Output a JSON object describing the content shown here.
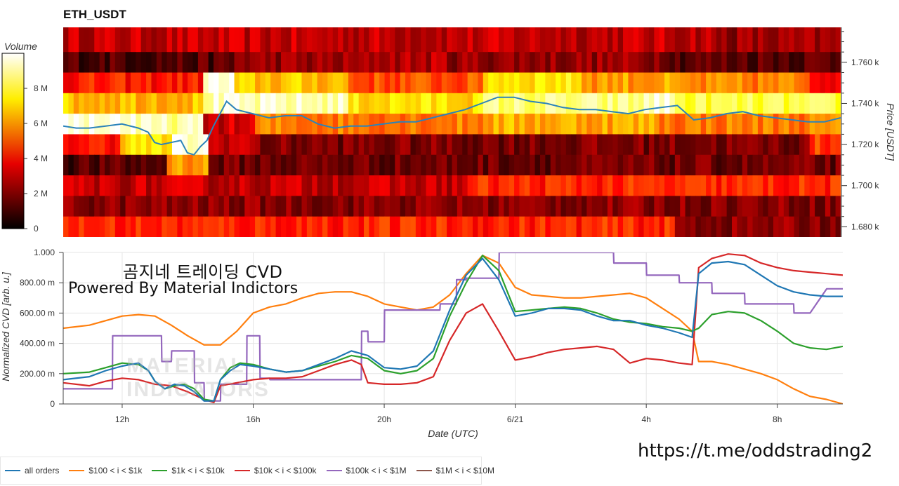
{
  "page": {
    "title": "ETH_USDT",
    "overlay_line1": "곰지네 트레이딩 CVD",
    "overlay_line2": "Powered By Material Indictors",
    "watermark": "MATERIAL\nINDICATORS",
    "url": "https://t.me/oddstrading2"
  },
  "colors": {
    "price_line": "#2b83ba",
    "all orders": "#1f77b4",
    "$100 < i < $1k": "#ff7f0e",
    "$1k < i < $10k": "#2ca02c",
    "$10k < i < $100k": "#d62728",
    "$100k < i < $1M": "#9467bd",
    "$1M < i < $10M": "#8c564b"
  },
  "chart_data": [
    {
      "type": "heatmap",
      "title": "ETH_USDT",
      "colorbar_label": "Volume",
      "colorbar_ticks": [
        "0",
        "2 M",
        "4 M",
        "6 M",
        "8 M"
      ],
      "colorbar_range": [
        0,
        10000000
      ],
      "colormap": "hot",
      "ylabel": "Price [USDT]",
      "y_ticks": [
        "1.680 k",
        "1.700 k",
        "1.720 k",
        "1.740 k",
        "1.760 k"
      ],
      "ylim": [
        1675,
        1777
      ],
      "xlim_hours": [
        10.2,
        34
      ],
      "price_bins": [
        1680,
        1690,
        1700,
        1710,
        1720,
        1730,
        1740,
        1750,
        1760,
        1770
      ],
      "bands": [
        {
          "bin": 1770,
          "base": 0.28,
          "segments": [
            [
              30,
              34,
              0.22
            ]
          ]
        },
        {
          "bin": 1760,
          "base": 0.22,
          "segments": [
            [
              10.2,
              15.5,
              0.12
            ],
            [
              19.5,
              22,
              0.26
            ],
            [
              28.8,
              34,
              0.14
            ]
          ]
        },
        {
          "bin": 1750,
          "base": 0.4,
          "segments": [
            [
              14.5,
              15.5,
              0.95
            ],
            [
              15.5,
              19,
              0.65
            ],
            [
              19,
              23,
              0.48
            ],
            [
              23,
              26,
              0.72
            ],
            [
              26,
              29,
              0.6
            ],
            [
              29,
              33,
              0.55
            ]
          ]
        },
        {
          "bin": 1740,
          "base": 0.8,
          "segments": [
            [
              10.2,
              14.5,
              0.65
            ],
            [
              14.5,
              19,
              0.92
            ],
            [
              19,
              23,
              0.7
            ],
            [
              23,
              28,
              0.86
            ],
            [
              28,
              29,
              0.95
            ],
            [
              29,
              33.5,
              0.8
            ]
          ]
        },
        {
          "bin": 1730,
          "base": 0.75,
          "segments": [
            [
              10.2,
              12.5,
              0.97
            ],
            [
              12.5,
              14.5,
              0.9
            ],
            [
              14.5,
              16,
              0.3
            ],
            [
              16,
              23,
              0.55
            ],
            [
              23,
              28.5,
              0.62
            ],
            [
              28.5,
              34,
              0.55
            ]
          ]
        },
        {
          "bin": 1720,
          "base": 0.4,
          "segments": [
            [
              12,
              13.5,
              0.7
            ],
            [
              13.5,
              14.7,
              0.95
            ],
            [
              14.7,
              16,
              0.3
            ],
            [
              16,
              33,
              0.18
            ],
            [
              33,
              34,
              0.45
            ]
          ]
        },
        {
          "bin": 1710,
          "base": 0.25,
          "segments": [
            [
              10.2,
              13.4,
              0.12
            ],
            [
              13.4,
              14.7,
              0.6
            ],
            [
              14.7,
              34,
              0.16
            ]
          ]
        },
        {
          "bin": 1700,
          "base": 0.3,
          "segments": [
            [
              10.2,
              22.5,
              0.28
            ],
            [
              22.5,
              34,
              0.42
            ]
          ]
        },
        {
          "bin": 1690,
          "base": 0.2,
          "segments": [
            [
              10.2,
              34,
              0.2
            ]
          ]
        },
        {
          "bin": 1680,
          "base": 0.38,
          "segments": [
            [
              10.2,
              29,
              0.42
            ],
            [
              29,
              34,
              0.2
            ]
          ]
        }
      ],
      "price_series": {
        "name": "Price",
        "x": [
          10.2,
          10.6,
          11,
          11.5,
          12,
          12.5,
          12.8,
          13,
          13.2,
          13.5,
          13.8,
          14,
          14.2,
          14.4,
          14.6,
          14.8,
          15,
          15.2,
          15.5,
          16,
          16.5,
          17,
          17.5,
          18,
          18.5,
          19,
          19.5,
          20,
          20.5,
          21,
          21.5,
          22,
          22.5,
          23,
          23.5,
          24,
          24.5,
          25,
          25.5,
          26,
          26.5,
          27,
          27.5,
          28,
          28.5,
          29,
          29.5,
          30,
          30.5,
          31,
          31.5,
          32,
          32.5,
          33,
          33.5,
          34
        ],
        "y": [
          1729,
          1728,
          1728,
          1729,
          1730,
          1728,
          1726,
          1721,
          1720,
          1721,
          1722,
          1716,
          1715,
          1719,
          1722,
          1729,
          1735,
          1741,
          1737,
          1735,
          1733,
          1734,
          1734,
          1730,
          1728,
          1729,
          1729,
          1730,
          1731,
          1731,
          1733,
          1735,
          1737,
          1740,
          1743,
          1743,
          1741,
          1740,
          1738,
          1737,
          1737,
          1736,
          1735,
          1737,
          1738,
          1739,
          1732,
          1733,
          1735,
          1736,
          1734,
          1733,
          1732,
          1731,
          1731,
          1733
        ]
      }
    },
    {
      "type": "line",
      "xlabel": "Date (UTC)",
      "ylabel": "Normalized CVD [arb. u.]",
      "x_ticks": [
        {
          "label": "12h",
          "value": 12
        },
        {
          "label": "16h",
          "value": 16
        },
        {
          "label": "20h",
          "value": 20
        },
        {
          "label": "6/21",
          "value": 24
        },
        {
          "label": "4h",
          "value": 28
        },
        {
          "label": "8h",
          "value": 32
        }
      ],
      "xlim": [
        10.2,
        34
      ],
      "y_ticks": [
        "0",
        "200.00 m",
        "400.00 m",
        "600.00 m",
        "800.00 m",
        "1.000"
      ],
      "ylim": [
        0,
        1
      ],
      "grid": true,
      "legend_position": "bottom",
      "series": [
        {
          "name": "all orders",
          "x": [
            10.2,
            11,
            11.5,
            12,
            12.5,
            12.8,
            13,
            13.3,
            13.6,
            13.9,
            14.2,
            14.5,
            14.8,
            15,
            15.3,
            15.6,
            16,
            16.5,
            17,
            17.5,
            18,
            18.5,
            19,
            19.5,
            20,
            20.5,
            21,
            21.5,
            22,
            22.5,
            23,
            23.5,
            24,
            24.5,
            25,
            25.5,
            26,
            26.5,
            27,
            27.5,
            28,
            28.5,
            29,
            29.4,
            29.6,
            30,
            30.5,
            31,
            31.5,
            32,
            32.5,
            33,
            33.5,
            34
          ],
          "y": [
            0.16,
            0.18,
            0.22,
            0.25,
            0.27,
            0.22,
            0.15,
            0.1,
            0.13,
            0.12,
            0.08,
            0.02,
            0.02,
            0.16,
            0.22,
            0.26,
            0.25,
            0.23,
            0.21,
            0.22,
            0.26,
            0.3,
            0.35,
            0.32,
            0.24,
            0.23,
            0.25,
            0.35,
            0.62,
            0.85,
            0.96,
            0.82,
            0.58,
            0.6,
            0.63,
            0.63,
            0.62,
            0.58,
            0.55,
            0.55,
            0.52,
            0.5,
            0.47,
            0.44,
            0.86,
            0.93,
            0.94,
            0.92,
            0.85,
            0.78,
            0.74,
            0.72,
            0.71,
            0.71
          ]
        },
        {
          "name": "$100 < i < $1k",
          "x": [
            10.2,
            11,
            11.5,
            12,
            12.5,
            13,
            13.5,
            14,
            14.5,
            15,
            15.5,
            16,
            16.5,
            17,
            17.5,
            18,
            18.5,
            19,
            19.5,
            20,
            20.5,
            21,
            21.5,
            22,
            22.5,
            23,
            23.5,
            24,
            24.5,
            25,
            25.5,
            26,
            26.5,
            27,
            27.5,
            28,
            28.5,
            29,
            29.4,
            29.6,
            30,
            30.5,
            31,
            31.5,
            32,
            32.5,
            33,
            33.5,
            34
          ],
          "y": [
            0.5,
            0.52,
            0.55,
            0.58,
            0.59,
            0.58,
            0.52,
            0.45,
            0.39,
            0.39,
            0.48,
            0.6,
            0.64,
            0.66,
            0.7,
            0.73,
            0.74,
            0.74,
            0.71,
            0.66,
            0.64,
            0.62,
            0.64,
            0.72,
            0.86,
            0.98,
            0.93,
            0.77,
            0.72,
            0.71,
            0.7,
            0.7,
            0.71,
            0.72,
            0.73,
            0.7,
            0.63,
            0.56,
            0.48,
            0.28,
            0.28,
            0.26,
            0.23,
            0.2,
            0.16,
            0.1,
            0.05,
            0.03,
            0.0
          ]
        },
        {
          "name": "$1k < i < $10k",
          "x": [
            10.2,
            11,
            11.5,
            12,
            12.5,
            12.8,
            13,
            13.3,
            13.6,
            13.9,
            14.2,
            14.5,
            14.8,
            15,
            15.3,
            15.6,
            16,
            16.5,
            17,
            17.5,
            18,
            18.5,
            19,
            19.5,
            20,
            20.5,
            21,
            21.5,
            22,
            22.5,
            23,
            23.5,
            24,
            24.5,
            25,
            25.5,
            26,
            26.5,
            27,
            27.5,
            28,
            28.5,
            29,
            29.4,
            29.6,
            30,
            30.5,
            31,
            31.5,
            32,
            32.5,
            33,
            33.5,
            34
          ],
          "y": [
            0.2,
            0.21,
            0.24,
            0.27,
            0.26,
            0.22,
            0.15,
            0.1,
            0.12,
            0.13,
            0.1,
            0.03,
            0.02,
            0.16,
            0.24,
            0.27,
            0.26,
            0.23,
            0.21,
            0.22,
            0.25,
            0.28,
            0.32,
            0.3,
            0.22,
            0.2,
            0.22,
            0.3,
            0.58,
            0.8,
            0.98,
            0.88,
            0.61,
            0.62,
            0.63,
            0.64,
            0.63,
            0.6,
            0.56,
            0.54,
            0.53,
            0.51,
            0.5,
            0.48,
            0.5,
            0.59,
            0.61,
            0.6,
            0.55,
            0.48,
            0.4,
            0.37,
            0.36,
            0.38
          ]
        },
        {
          "name": "$10k < i < $100k",
          "x": [
            10.2,
            11,
            11.5,
            12,
            12.5,
            13,
            13.5,
            14,
            14.5,
            14.8,
            15,
            15.5,
            16,
            16.5,
            17,
            17.5,
            18,
            18.5,
            19,
            19.3,
            19.5,
            20,
            20.5,
            21,
            21.5,
            22,
            22.5,
            23,
            23.5,
            24,
            24.5,
            25,
            25.5,
            26,
            26.5,
            27,
            27.5,
            28,
            28.5,
            29,
            29.4,
            29.6,
            30,
            30.5,
            31,
            31.5,
            32,
            32.5,
            33,
            33.5,
            34
          ],
          "y": [
            0.14,
            0.12,
            0.15,
            0.17,
            0.16,
            0.13,
            0.12,
            0.08,
            0.03,
            0.01,
            0.12,
            0.14,
            0.16,
            0.17,
            0.17,
            0.18,
            0.22,
            0.26,
            0.29,
            0.26,
            0.14,
            0.13,
            0.13,
            0.14,
            0.18,
            0.42,
            0.6,
            0.66,
            0.48,
            0.29,
            0.31,
            0.34,
            0.36,
            0.37,
            0.38,
            0.36,
            0.27,
            0.3,
            0.29,
            0.27,
            0.26,
            0.9,
            0.96,
            0.99,
            0.98,
            0.93,
            0.9,
            0.88,
            0.87,
            0.86,
            0.85
          ]
        },
        {
          "name": "$100k < i < $1M",
          "x": [
            10.2,
            11,
            11.7,
            11.71,
            13.2,
            13.21,
            13.5,
            13.51,
            14.2,
            14.21,
            14.5,
            14.51,
            15,
            15.01,
            15.8,
            15.81,
            16.2,
            16.21,
            16.5,
            16.51,
            19.3,
            19.31,
            19.5,
            19.51,
            20,
            20.01,
            21.7,
            21.71,
            22.2,
            22.21,
            22.5,
            22.51,
            23.5,
            23.51,
            25,
            25.01,
            27,
            27.01,
            28,
            28.01,
            29,
            29.01,
            30,
            30.01,
            31,
            31.01,
            32.5,
            32.51,
            33,
            33.51,
            34
          ],
          "y": [
            0.1,
            0.1,
            0.1,
            0.45,
            0.45,
            0.28,
            0.28,
            0.35,
            0.35,
            0.14,
            0.14,
            0.02,
            0.02,
            0.13,
            0.13,
            0.45,
            0.45,
            0.17,
            0.17,
            0.16,
            0.16,
            0.48,
            0.48,
            0.41,
            0.41,
            0.62,
            0.62,
            0.66,
            0.66,
            0.82,
            0.82,
            0.83,
            0.83,
            1.0,
            1.0,
            1.0,
            1.0,
            0.93,
            0.93,
            0.85,
            0.85,
            0.8,
            0.8,
            0.73,
            0.73,
            0.66,
            0.66,
            0.6,
            0.6,
            0.76,
            0.76
          ]
        },
        {
          "name": "$1M < i < $10M",
          "x": [],
          "y": []
        }
      ]
    }
  ]
}
